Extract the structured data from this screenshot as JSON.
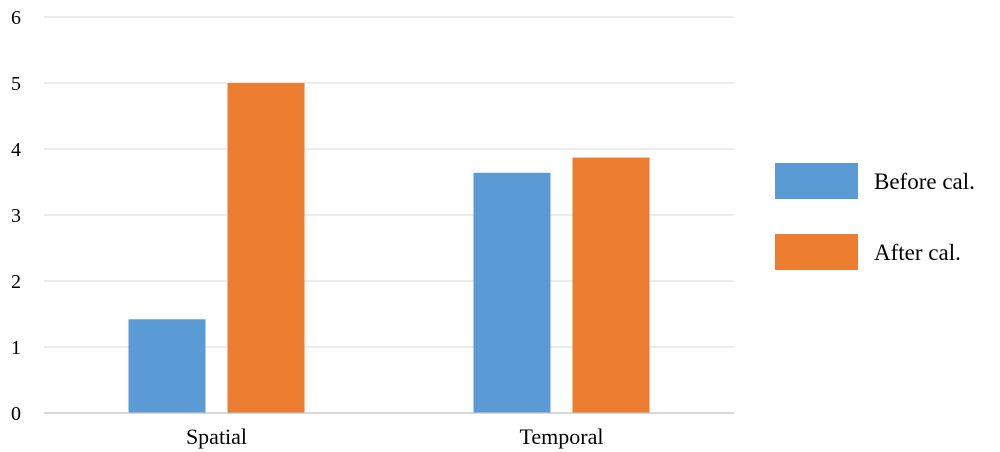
{
  "chart_data": {
    "type": "bar",
    "title": "",
    "xlabel": "",
    "ylabel": "",
    "categories": [
      "Spatial",
      "Temporal"
    ],
    "series": [
      {
        "name": "Before cal.",
        "values": [
          1.42,
          3.64
        ],
        "color": "#5b9bd5"
      },
      {
        "name": "After cal.",
        "values": [
          5.0,
          3.87
        ],
        "color": "#ed7d31"
      }
    ],
    "ylim": [
      0,
      6
    ],
    "yticks": [
      "0",
      "1",
      "2",
      "3",
      "4",
      "5",
      "6"
    ],
    "grid": true,
    "legend_position": "right"
  }
}
